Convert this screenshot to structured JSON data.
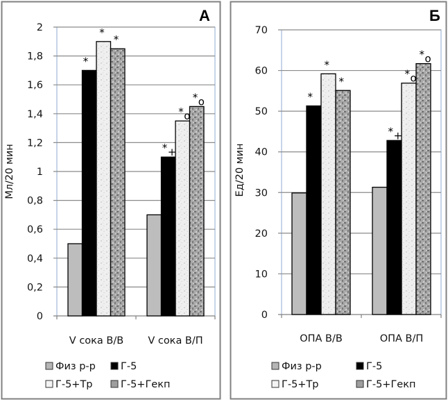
{
  "chart_data": [
    {
      "type": "bar",
      "panel_label": "А",
      "ylabel": "Мл/20 мин",
      "xlabel": "",
      "ylim": [
        0,
        2
      ],
      "yticks": [
        "0",
        "0,2",
        "0,4",
        "0,6",
        "0,8",
        "1",
        "1,2",
        "1,4",
        "1,6",
        "1,8",
        "2"
      ],
      "ytick_values": [
        0,
        0.2,
        0.4,
        0.6,
        0.8,
        1.0,
        1.2,
        1.4,
        1.6,
        1.8,
        2.0
      ],
      "grid": true,
      "categories": [
        "V  сока В/В",
        "V  сока  В/П"
      ],
      "series": [
        {
          "name": "Физ р-р",
          "values": [
            0.5,
            0.7
          ],
          "annotations": [
            "",
            ""
          ]
        },
        {
          "name": "Г-5",
          "values": [
            1.7,
            1.1
          ],
          "annotations": [
            "*",
            "*+"
          ]
        },
        {
          "name": "Г-5+Тр",
          "values": [
            1.9,
            1.35
          ],
          "annotations": [
            "*",
            "*o"
          ]
        },
        {
          "name": "Г-5+Гекп",
          "values": [
            1.85,
            1.45
          ],
          "annotations": [
            "*",
            "*o"
          ]
        }
      ],
      "legend": {
        "placement": "bottom",
        "entries": [
          "Физ р-р",
          "Г-5",
          "Г-5+Тр",
          "Г-5+Гекп"
        ]
      }
    },
    {
      "type": "bar",
      "panel_label": "Б",
      "ylabel": "Ед/20 мин",
      "xlabel": "",
      "ylim": [
        0,
        70
      ],
      "yticks": [
        "0",
        "10",
        "20",
        "30",
        "40",
        "50",
        "60",
        "70"
      ],
      "ytick_values": [
        0,
        10,
        20,
        30,
        40,
        50,
        60,
        70
      ],
      "grid": true,
      "categories": [
        "ОПА  В/В",
        "ОПА   В/П"
      ],
      "series": [
        {
          "name": "Физ р-р",
          "values": [
            29.9,
            31.3
          ],
          "annotations": [
            "",
            ""
          ]
        },
        {
          "name": "Г-5",
          "values": [
            51.3,
            42.8
          ],
          "annotations": [
            "*",
            "*+"
          ]
        },
        {
          "name": "Г-5+Тр",
          "values": [
            59.2,
            56.9
          ],
          "annotations": [
            "*",
            "*o"
          ]
        },
        {
          "name": "Г-5+Гекп",
          "values": [
            55.1,
            61.7
          ],
          "annotations": [
            "*",
            "*o"
          ]
        }
      ],
      "legend": {
        "placement": "bottom",
        "entries": [
          "Физ р-р",
          "Г-5",
          "Г-5+Тр",
          "Г-5+Гекп"
        ]
      }
    }
  ],
  "series_colors": {
    "Физ р-р": "#bdbdbd",
    "Г-5": "#000000",
    "Г-5+Тр": "#ececec",
    "Г-5+Гекп": "#9a9a9a"
  }
}
